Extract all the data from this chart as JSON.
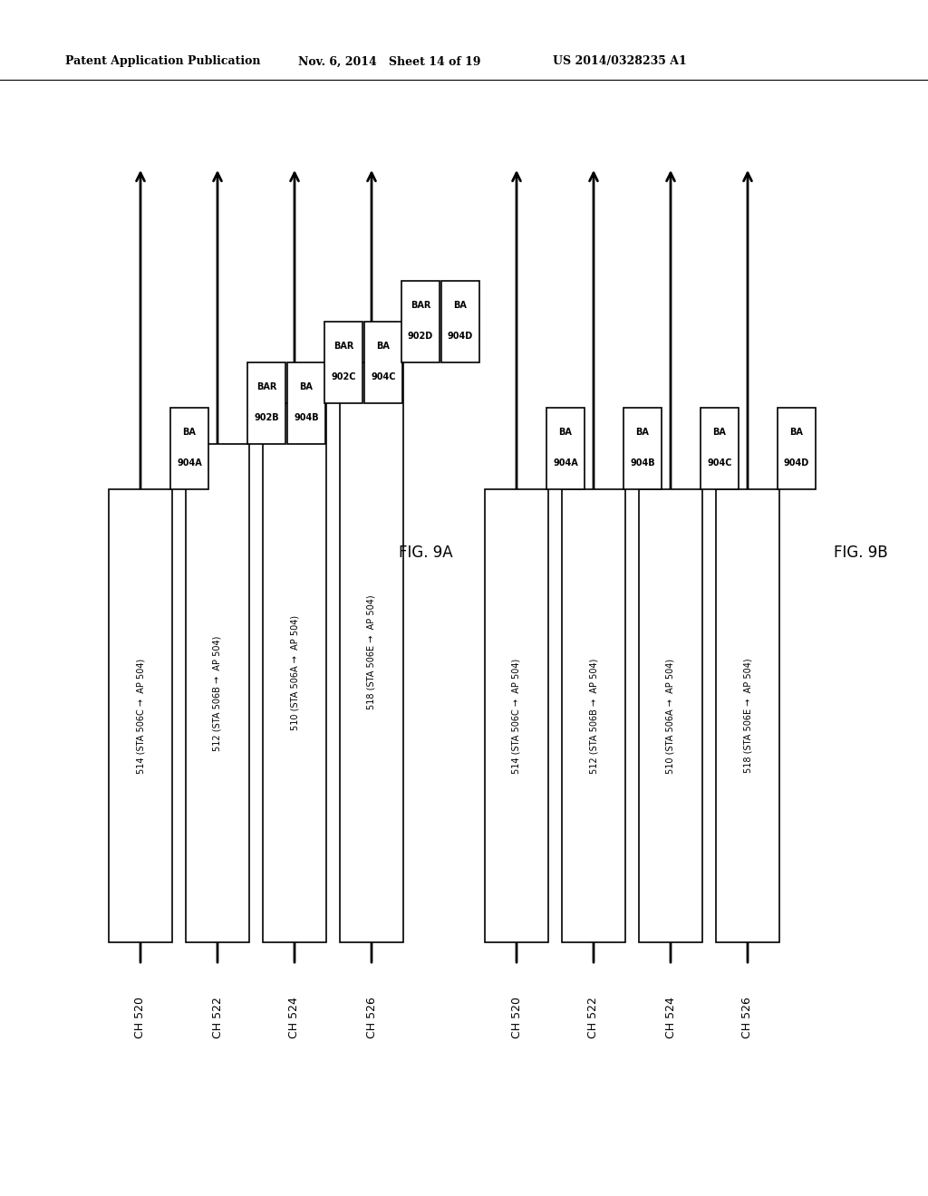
{
  "bg_color": "#ffffff",
  "header_left": "Patent Application Publication",
  "header_mid": "Nov. 6, 2014   Sheet 14 of 19",
  "header_right": "US 2014/0328235 A1",
  "fig_a_label": "FIG. 9A",
  "fig_b_label": "FIG. 9B",
  "channel_labels": [
    "CH 520",
    "CH 522",
    "CH 524",
    "CH 526"
  ],
  "fig_a_frame_labels": [
    "514 (STA 506C →  AP 504)",
    "512 (STA 506B →  AP 504)",
    "510 (STA 506A →  AP 504)",
    "518 (STA 506E →  AP 504)"
  ],
  "fig_b_frame_labels": [
    "514 (STA 506C →  AP 504)",
    "512 (STA 506B →  AP 504)",
    "510 (STA 506A →  AP 504)",
    "518 (STA 506E →  AP 504)"
  ]
}
